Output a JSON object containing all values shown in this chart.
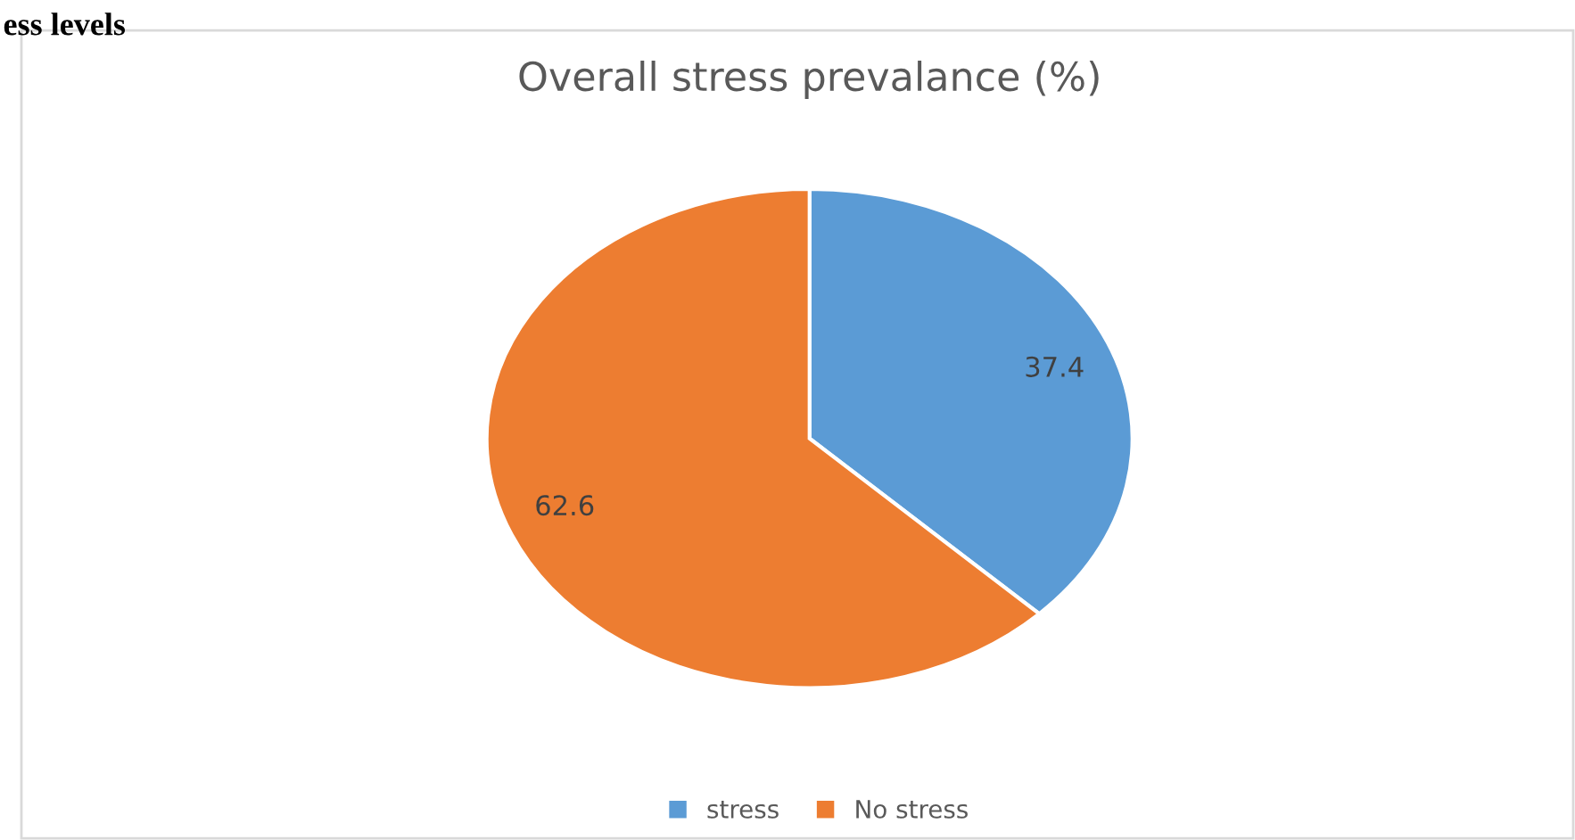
{
  "chart_data": {
    "type": "pie",
    "title": "Overall stress prevalance (%)",
    "categories": [
      "stress",
      "No stress"
    ],
    "values": [
      37.4,
      62.6
    ],
    "colors": [
      "#5b9bd5",
      "#ed7d31"
    ],
    "data_labels": true,
    "legend": "bottom",
    "annotations": [
      "ess levels"
    ]
  }
}
